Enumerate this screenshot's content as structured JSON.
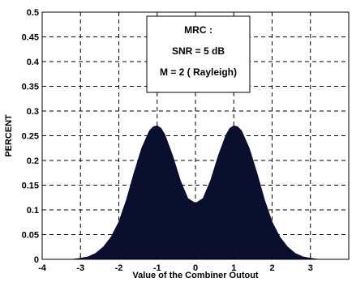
{
  "chart_data": {
    "type": "area",
    "title": "",
    "xlabel": "Value of the Combiner Outout",
    "ylabel": "PERCENT",
    "xlim": [
      -4,
      4
    ],
    "ylim": [
      0,
      0.5
    ],
    "xticks": [
      -4,
      -3,
      -2,
      -1,
      0,
      1,
      2,
      3
    ],
    "xtick_labels": [
      "-4",
      "-3",
      "-2",
      "-1",
      "0",
      "1",
      "2",
      "3"
    ],
    "yticks": [
      0,
      0.05,
      0.1,
      0.15,
      0.2,
      0.25,
      0.3,
      0.35,
      0.4,
      0.45,
      0.5
    ],
    "ytick_labels": [
      "0",
      "0.05",
      "0.1",
      "0.15",
      "0.2",
      "0.25",
      "0.3",
      "0.35",
      "0.4",
      "0.45",
      "0.5"
    ],
    "grid": true,
    "fill_color": "#0b0f2e",
    "annotation": [
      "MRC :",
      "SNR = 5 dB",
      "M = 2 ( Rayleigh)"
    ],
    "series": [
      {
        "x": [
          -3.2,
          -3.0,
          -2.8,
          -2.6,
          -2.4,
          -2.2,
          -2.0,
          -1.8,
          -1.6,
          -1.4,
          -1.2,
          -1.1,
          -1.0,
          -0.9,
          -0.8,
          -0.6,
          -0.4,
          -0.2,
          0.0,
          0.2,
          0.4,
          0.6,
          0.8,
          0.9,
          1.0,
          1.1,
          1.2,
          1.4,
          1.6,
          1.8,
          2.0,
          2.2,
          2.4,
          2.6,
          2.8,
          3.0,
          3.2
        ],
        "y": [
          0.0,
          0.002,
          0.005,
          0.012,
          0.025,
          0.045,
          0.075,
          0.12,
          0.175,
          0.225,
          0.26,
          0.268,
          0.27,
          0.265,
          0.252,
          0.21,
          0.16,
          0.123,
          0.113,
          0.123,
          0.16,
          0.21,
          0.252,
          0.265,
          0.27,
          0.268,
          0.26,
          0.225,
          0.175,
          0.12,
          0.075,
          0.045,
          0.025,
          0.012,
          0.005,
          0.002,
          0.0
        ]
      }
    ]
  }
}
